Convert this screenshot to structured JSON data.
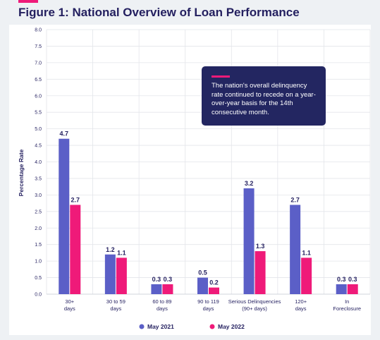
{
  "title": "Figure 1: National Overview of Loan Performance",
  "callout": "The nation's overall delinquency rate continued to recede on a year-over-year basis for the 14th consecutive month.",
  "colors": {
    "navy": "#231f5f",
    "may2021": "#5b5fc7",
    "may2022": "#ef1a79",
    "callout_bg": "#232661",
    "background": "#eef1f4"
  },
  "chart_data": {
    "type": "bar",
    "ylabel": "Percentage Rate",
    "xlabel": "",
    "ylim": [
      0,
      8
    ],
    "yticks": [
      "0.0",
      "0.5",
      "1.0",
      "1.5",
      "2.0",
      "2.5",
      "3.0",
      "3.5",
      "4.0",
      "4.5",
      "5.0",
      "5.5",
      "6.0",
      "6.5",
      "7.0",
      "7.5",
      "8.0"
    ],
    "categories": [
      [
        "30+",
        "days"
      ],
      [
        "30 to 59",
        "days"
      ],
      [
        "60 to 89",
        "days"
      ],
      [
        "90 to 119",
        "days"
      ],
      [
        "Serious Delinquencies",
        "(90+ days)"
      ],
      [
        "120+",
        "days"
      ],
      [
        "In",
        "Foreclosure"
      ]
    ],
    "series": [
      {
        "name": "May 2021",
        "color": "#5b5fc7",
        "values": [
          4.7,
          1.2,
          0.3,
          0.5,
          3.2,
          2.7,
          0.3
        ],
        "labels": [
          "4.7",
          "1.2",
          "0.3",
          "0.5",
          "3.2",
          "2.7",
          "0.3"
        ]
      },
      {
        "name": "May 2022",
        "color": "#ef1a79",
        "values": [
          2.7,
          1.1,
          0.3,
          0.2,
          1.3,
          1.1,
          0.3
        ],
        "labels": [
          "2.7",
          "1.1",
          "0.3",
          "0.2",
          "1.3",
          "1.1",
          "0.3"
        ]
      }
    ],
    "grid": true,
    "legend_position": "bottom"
  }
}
